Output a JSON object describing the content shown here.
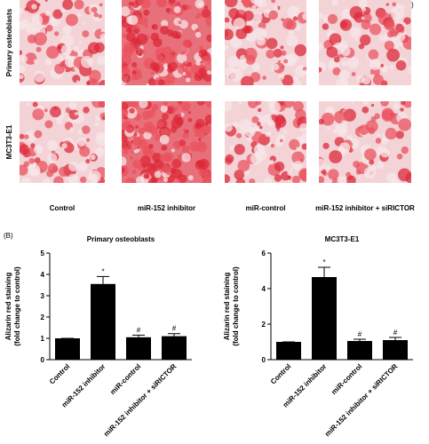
{
  "panel_a": {
    "label": "(A)",
    "rows": [
      "Primary osteoblasts",
      "MC3T3-E1"
    ],
    "columns": [
      "Control",
      "miR-152 inhibitor",
      "miR-control",
      "miR-152 inhibitor + siRICTOR"
    ]
  },
  "panel_b": {
    "label": "(B)"
  },
  "chart_data": [
    {
      "type": "bar",
      "title": "Primary osteoblasts",
      "y_label": [
        "Alizarin red staining",
        "(fold change to control)"
      ],
      "categories": [
        "Control",
        "miR-152 inhibitor",
        "miR-control",
        "miR-152 inhibitor + siRICTOR"
      ],
      "values": [
        1,
        3.55,
        1.05,
        1.1
      ],
      "errors": [
        0,
        0.35,
        0.1,
        0.12
      ],
      "markers": [
        null,
        "*",
        "#",
        "#"
      ],
      "color": "#000000",
      "ylim": [
        0,
        5
      ],
      "yticks": [
        0,
        1,
        2,
        3,
        4,
        5
      ]
    },
    {
      "type": "bar",
      "title": "MC3T3-E1",
      "y_label": [
        "Alizarin red staining",
        "(fold change to control)"
      ],
      "categories": [
        "Control",
        "miR-152 inhibitor",
        "miR-control",
        "miR-152 inhibitor + siRICTOR"
      ],
      "values": [
        1,
        4.65,
        1.05,
        1.1
      ],
      "errors": [
        0,
        0.55,
        0.1,
        0.15
      ],
      "markers": [
        null,
        "*",
        "#",
        "#"
      ],
      "color": "#000000",
      "ylim": [
        0,
        6
      ],
      "yticks": [
        0,
        2,
        4,
        6
      ]
    }
  ]
}
